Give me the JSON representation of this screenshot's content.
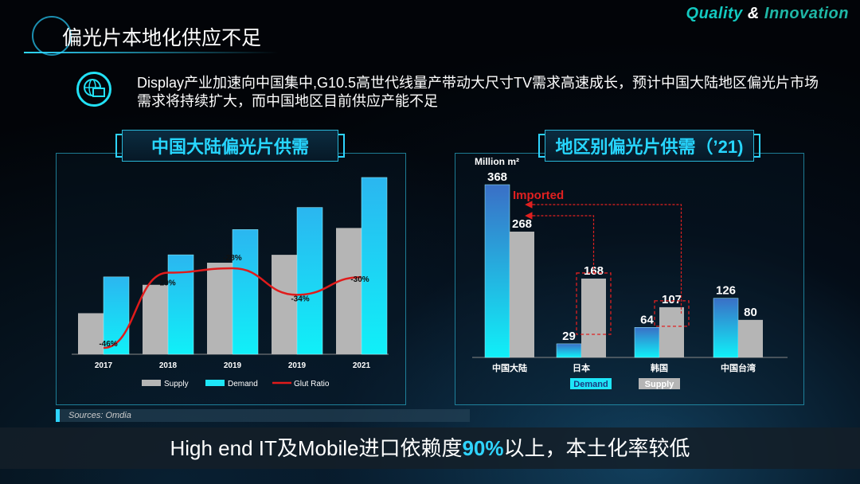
{
  "brand": {
    "quality": "Quality",
    "amp": "&",
    "innovation": "Innovation"
  },
  "title": "偏光片本地化供应不足",
  "description": "Display产业加速向中国集中,G10.5高世代线量产带动大尺寸TV需求高速成长，预计中国大陆地区偏光片市场需求将持续扩大，而中国地区目前供应产能不足",
  "footer": {
    "pre": "High end IT及Mobile进口依赖度",
    "highlight": "90%",
    "post": "以上，本土化率较低"
  },
  "source": "Sources: Omdia",
  "colors": {
    "supply": "#b5b5b5",
    "demand": "#1ee6f8",
    "glut": "#e01b1b",
    "accent": "#2fd4ff"
  },
  "chart_data": [
    {
      "type": "bar",
      "title": "中国大陆偏光片供需",
      "categories": [
        "2017",
        "2018",
        "2019",
        "2019",
        "2021"
      ],
      "series": [
        {
          "name": "Supply",
          "values": [
            0.26,
            0.44,
            0.58,
            0.63,
            0.8
          ]
        },
        {
          "name": "Demand",
          "values": [
            0.49,
            0.63,
            0.79,
            0.93,
            1.12
          ]
        },
        {
          "name": "Glut Ratio",
          "type": "line",
          "values": [
            -46,
            -29,
            -28,
            -34,
            -30
          ],
          "labels": [
            "-46%",
            "-29%",
            "-28%",
            "-34%",
            "-30%"
          ]
        }
      ],
      "legend": [
        "Supply",
        "Demand",
        "Glut Ratio"
      ],
      "legend_position": "bottom"
    },
    {
      "type": "bar",
      "title": "地区别偏光片供需（’21)",
      "unit": "Million m²",
      "categories": [
        "中国大陆",
        "日本",
        "韩国",
        "中国台湾"
      ],
      "series": [
        {
          "name": "Demand",
          "values": [
            368,
            29,
            64,
            126
          ]
        },
        {
          "name": "Supply",
          "values": [
            268,
            168,
            107,
            80
          ]
        }
      ],
      "annotation": "Imported",
      "legend": [
        "Demand",
        "Supply"
      ],
      "legend_position": "bottom"
    }
  ]
}
